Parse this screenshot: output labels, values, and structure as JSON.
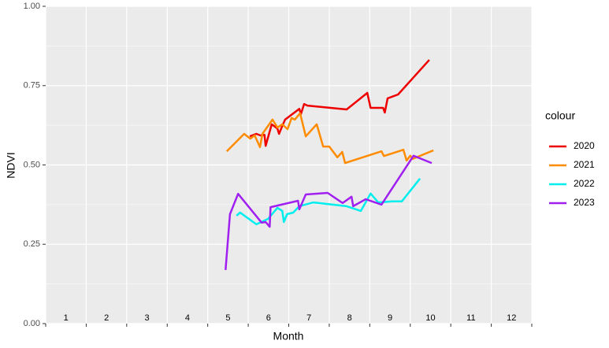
{
  "chart_data": {
    "type": "line",
    "xlabel": "Month",
    "ylabel": "NDVI",
    "legend_title": "colour",
    "legend": "right",
    "xlim": [
      1,
      13
    ],
    "xticks": [
      1,
      2,
      3,
      4,
      5,
      6,
      7,
      8,
      9,
      10,
      11,
      12,
      13
    ],
    "month_labels": [
      1,
      2,
      3,
      4,
      5,
      6,
      7,
      8,
      9,
      10,
      11,
      12
    ],
    "ylim": [
      0,
      1
    ],
    "yticks": [
      {
        "value": 0,
        "label": "0.00"
      },
      {
        "value": 0.25,
        "label": "0.25"
      },
      {
        "value": 0.5,
        "label": "0.50"
      },
      {
        "value": 0.75,
        "label": "0.75"
      },
      {
        "value": 1,
        "label": "1.00"
      }
    ],
    "grid": true,
    "series": [
      {
        "name": "2020",
        "color": "#ee0000",
        "x": [
          6.04,
          6.2,
          6.3,
          6.4,
          6.43,
          6.58,
          6.72,
          6.76,
          6.84,
          6.91,
          7.26,
          7.3,
          7.38,
          7.46,
          8.43,
          8.94,
          9.02,
          9.33,
          9.37,
          9.44,
          9.7,
          10.47
        ],
        "values": [
          0.59,
          0.598,
          0.593,
          0.595,
          0.56,
          0.628,
          0.615,
          0.598,
          0.623,
          0.643,
          0.677,
          0.66,
          0.692,
          0.687,
          0.675,
          0.727,
          0.68,
          0.68,
          0.665,
          0.71,
          0.722,
          0.831
        ]
      },
      {
        "name": "2021",
        "color": "#ff8c00",
        "x": [
          5.47,
          5.9,
          6.05,
          6.16,
          6.29,
          6.35,
          6.6,
          6.72,
          6.84,
          6.97,
          7.07,
          7.15,
          7.28,
          7.42,
          7.69,
          7.85,
          8.0,
          8.2,
          8.32,
          8.39,
          9.29,
          9.35,
          9.83,
          9.91,
          10.0,
          10.06,
          10.57
        ],
        "values": [
          0.543,
          0.598,
          0.583,
          0.593,
          0.556,
          0.598,
          0.643,
          0.618,
          0.628,
          0.613,
          0.648,
          0.643,
          0.663,
          0.59,
          0.628,
          0.558,
          0.558,
          0.524,
          0.541,
          0.506,
          0.543,
          0.528,
          0.548,
          0.514,
          0.529,
          0.519,
          0.546
        ]
      },
      {
        "name": "2022",
        "color": "#00eeee",
        "x": [
          5.71,
          5.8,
          6.2,
          6.49,
          6.72,
          6.84,
          6.88,
          6.96,
          7.11,
          7.26,
          7.61,
          8.43,
          8.78,
          9.02,
          9.21,
          9.56,
          9.79,
          10.24
        ],
        "values": [
          0.34,
          0.35,
          0.313,
          0.33,
          0.365,
          0.355,
          0.32,
          0.345,
          0.35,
          0.37,
          0.382,
          0.37,
          0.355,
          0.41,
          0.382,
          0.385,
          0.385,
          0.457
        ]
      },
      {
        "name": "2023",
        "color": "#a020f0",
        "x": [
          5.44,
          5.55,
          5.75,
          6.33,
          6.43,
          6.53,
          6.55,
          7.23,
          7.26,
          7.42,
          7.96,
          8.33,
          8.55,
          8.59,
          8.9,
          9.29,
          10.08,
          10.53
        ],
        "values": [
          0.169,
          0.345,
          0.409,
          0.318,
          0.32,
          0.305,
          0.367,
          0.387,
          0.36,
          0.407,
          0.412,
          0.38,
          0.4,
          0.37,
          0.392,
          0.375,
          0.529,
          0.506
        ]
      }
    ]
  }
}
